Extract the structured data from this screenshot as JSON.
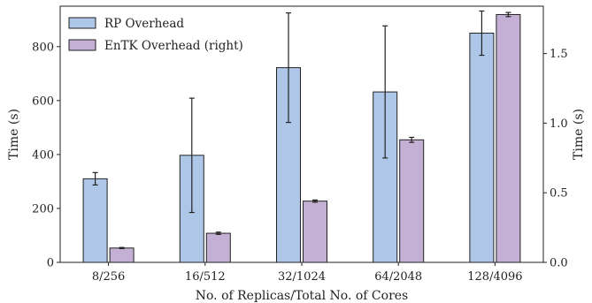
{
  "chart_data": {
    "type": "bar",
    "xlabel": "No. of Replicas/Total No. of Cores",
    "ylabel_left": "Time (s)",
    "ylabel_right": "Time (s)",
    "categories": [
      "8/256",
      "16/512",
      "32/1024",
      "64/2048",
      "128/4096"
    ],
    "ylim_left": [
      0,
      950
    ],
    "ylim_right": [
      0,
      1.84
    ],
    "yticks_left": [
      "0",
      "200",
      "400",
      "600",
      "800"
    ],
    "yticks_right": [
      "0.0",
      "0.5",
      "1.0",
      "1.5"
    ],
    "legend_position": "top-left",
    "series": [
      {
        "name": "RP Overhead",
        "axis": "left",
        "color": "#aec7e8",
        "values": [
          310,
          397,
          722,
          632,
          850
        ],
        "errors": [
          23,
          212,
          203,
          245,
          82
        ]
      },
      {
        "name": "EnTK Overhead (right)",
        "axis": "right",
        "color": "#c5b0d5",
        "values": [
          0.103,
          0.209,
          0.44,
          0.88,
          1.78
        ],
        "errors": [
          0.004,
          0.008,
          0.008,
          0.018,
          0.015
        ]
      }
    ]
  }
}
